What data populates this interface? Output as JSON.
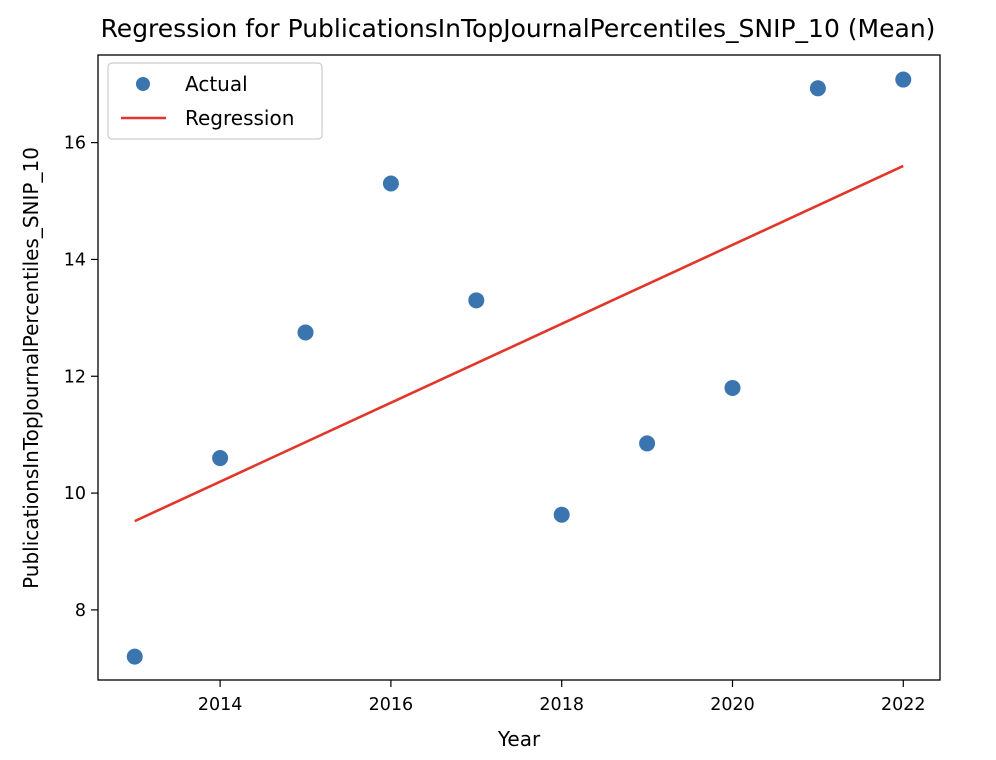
{
  "chart_data": {
    "type": "scatter",
    "title": "Regression for PublicationsInTopJournalPercentiles_SNIP_10 (Mean)",
    "xlabel": "Year",
    "ylabel": "PublicationsInTopJournalPercentiles_SNIP_10",
    "xlim": [
      2012.57,
      2022.43
    ],
    "ylim": [
      6.8,
      17.5
    ],
    "xticks": [
      2014,
      2016,
      2018,
      2020,
      2022
    ],
    "yticks": [
      8,
      10,
      12,
      14,
      16
    ],
    "grid": false,
    "legend_position": "top-left",
    "series": [
      {
        "name": "Actual",
        "kind": "scatter",
        "color": "#3a75b0",
        "x": [
          2013,
          2014,
          2015,
          2016,
          2017,
          2018,
          2019,
          2020,
          2021,
          2022
        ],
        "y": [
          7.2,
          10.6,
          12.75,
          15.3,
          13.3,
          9.63,
          10.85,
          11.8,
          16.93,
          17.08
        ]
      },
      {
        "name": "Regression",
        "kind": "line",
        "color": "#e2362a",
        "x": [
          2013,
          2022
        ],
        "y": [
          9.52,
          15.6
        ]
      }
    ]
  }
}
